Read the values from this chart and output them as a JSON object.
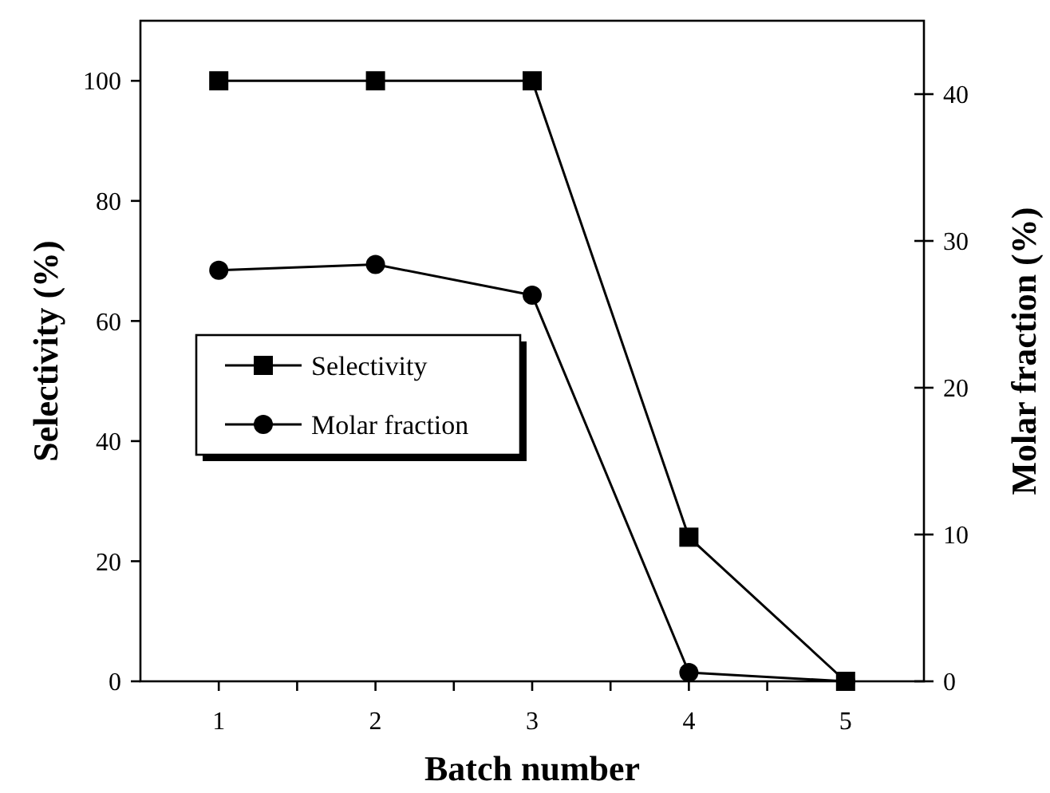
{
  "chart_data": {
    "type": "line",
    "xlabel": "Batch number",
    "ylabel": "Selectivity (%)",
    "y2label": "Molar fraction (%)",
    "x": [
      1,
      2,
      3,
      4,
      5
    ],
    "series": [
      {
        "name": "Selectivity",
        "color": "#000000",
        "values": [
          100,
          100,
          100,
          24,
          0
        ],
        "marker": "square"
      },
      {
        "name": "Molar fraction",
        "color": "#000000",
        "values": [
          28,
          28.4,
          26.3,
          0.6,
          0
        ],
        "axis": "y2",
        "marker": "circle"
      }
    ],
    "xlim": [
      0.5,
      5.5
    ],
    "xticks": [
      1,
      {
        "value": 1.5,
        "label": null
      },
      2,
      {
        "value": 2.5,
        "label": null
      },
      3,
      {
        "value": 3.5,
        "label": null
      },
      4,
      {
        "value": 4.5,
        "label": null
      },
      5
    ],
    "ylim": [
      0,
      110
    ],
    "yticks": [
      0,
      20,
      40,
      60,
      80,
      100
    ],
    "y2lim": [
      0,
      45
    ],
    "y2ticks": [
      0,
      10,
      20,
      30,
      40
    ],
    "grid": false,
    "legend": "left",
    "line_style": "solid"
  }
}
